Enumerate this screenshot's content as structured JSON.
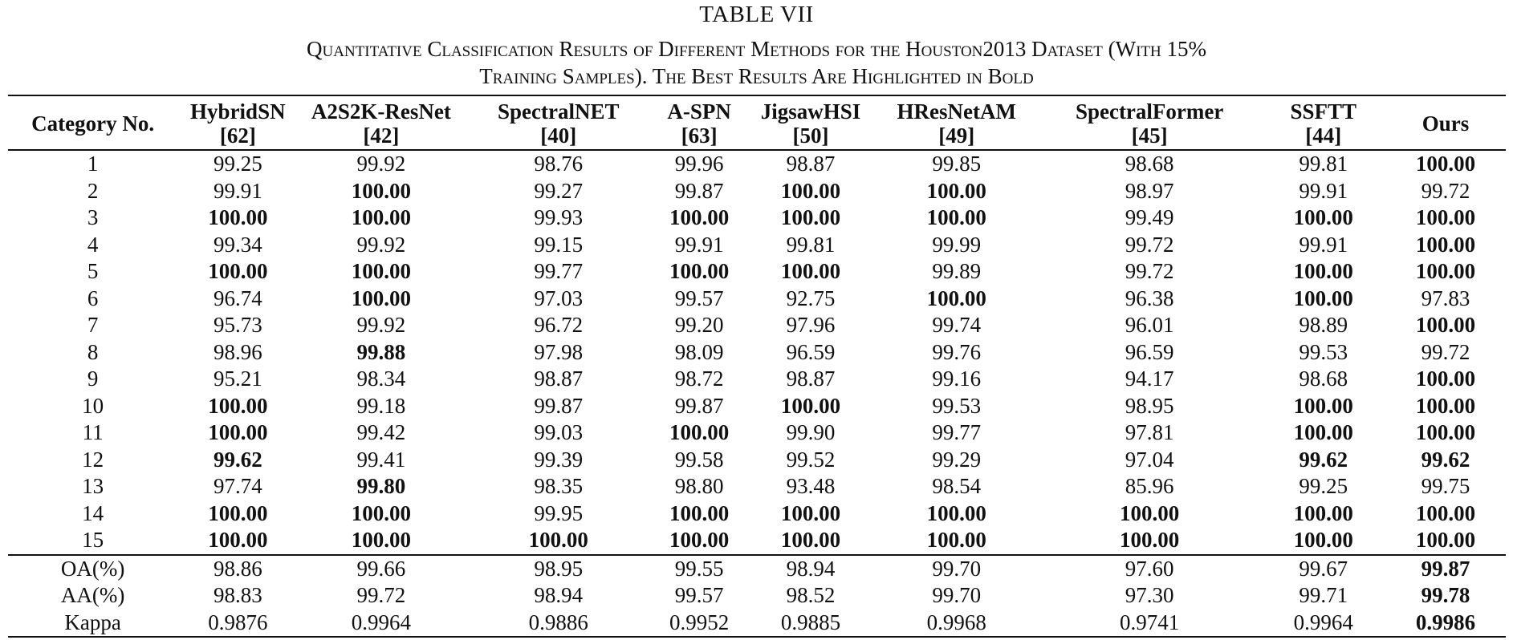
{
  "table_label": "TABLE VII",
  "caption_lines": [
    "Quantitative Classification Results of Different Methods for the Houston2013 Dataset (With 15%",
    "Training Samples). The Best Results Are Highlighted in Bold"
  ],
  "header": {
    "category": "Category No.",
    "methods": [
      {
        "name": "HybridSN",
        "ref": "[62]"
      },
      {
        "name": "A2S2K-ResNet",
        "ref": "[42]"
      },
      {
        "name": "SpectralNET",
        "ref": "[40]"
      },
      {
        "name": "A-SPN",
        "ref": "[63]"
      },
      {
        "name": "JigsawHSI",
        "ref": "[50]"
      },
      {
        "name": "HResNetAM",
        "ref": "[49]"
      },
      {
        "name": "SpectralFormer",
        "ref": "[45]"
      },
      {
        "name": "SSFTT",
        "ref": "[44]"
      },
      {
        "name": "Ours",
        "ref": ""
      }
    ]
  },
  "rows": [
    {
      "label": "1",
      "values": [
        "99.25",
        "99.92",
        "98.76",
        "99.96",
        "98.87",
        "99.85",
        "98.68",
        "99.81",
        "100.00"
      ],
      "bold": [
        8
      ]
    },
    {
      "label": "2",
      "values": [
        "99.91",
        "100.00",
        "99.27",
        "99.87",
        "100.00",
        "100.00",
        "98.97",
        "99.91",
        "99.72"
      ],
      "bold": [
        1,
        4,
        5
      ]
    },
    {
      "label": "3",
      "values": [
        "100.00",
        "100.00",
        "99.93",
        "100.00",
        "100.00",
        "100.00",
        "99.49",
        "100.00",
        "100.00"
      ],
      "bold": [
        0,
        1,
        3,
        4,
        5,
        7,
        8
      ]
    },
    {
      "label": "4",
      "values": [
        "99.34",
        "99.92",
        "99.15",
        "99.91",
        "99.81",
        "99.99",
        "99.72",
        "99.91",
        "100.00"
      ],
      "bold": [
        8
      ]
    },
    {
      "label": "5",
      "values": [
        "100.00",
        "100.00",
        "99.77",
        "100.00",
        "100.00",
        "99.89",
        "99.72",
        "100.00",
        "100.00"
      ],
      "bold": [
        0,
        1,
        3,
        4,
        7,
        8
      ]
    },
    {
      "label": "6",
      "values": [
        "96.74",
        "100.00",
        "97.03",
        "99.57",
        "92.75",
        "100.00",
        "96.38",
        "100.00",
        "97.83"
      ],
      "bold": [
        1,
        5,
        7
      ]
    },
    {
      "label": "7",
      "values": [
        "95.73",
        "99.92",
        "96.72",
        "99.20",
        "97.96",
        "99.74",
        "96.01",
        "98.89",
        "100.00"
      ],
      "bold": [
        8
      ]
    },
    {
      "label": "8",
      "values": [
        "98.96",
        "99.88",
        "97.98",
        "98.09",
        "96.59",
        "99.76",
        "96.59",
        "99.53",
        "99.72"
      ],
      "bold": [
        1
      ]
    },
    {
      "label": "9",
      "values": [
        "95.21",
        "98.34",
        "98.87",
        "98.72",
        "98.87",
        "99.16",
        "94.17",
        "98.68",
        "100.00"
      ],
      "bold": [
        8
      ]
    },
    {
      "label": "10",
      "values": [
        "100.00",
        "99.18",
        "99.87",
        "99.87",
        "100.00",
        "99.53",
        "98.95",
        "100.00",
        "100.00"
      ],
      "bold": [
        0,
        4,
        7,
        8
      ]
    },
    {
      "label": "11",
      "values": [
        "100.00",
        "99.42",
        "99.03",
        "100.00",
        "99.90",
        "99.77",
        "97.81",
        "100.00",
        "100.00"
      ],
      "bold": [
        0,
        3,
        7,
        8
      ]
    },
    {
      "label": "12",
      "values": [
        "99.62",
        "99.41",
        "99.39",
        "99.58",
        "99.52",
        "99.29",
        "97.04",
        "99.62",
        "99.62"
      ],
      "bold": [
        0,
        7,
        8
      ]
    },
    {
      "label": "13",
      "values": [
        "97.74",
        "99.80",
        "98.35",
        "98.80",
        "93.48",
        "98.54",
        "85.96",
        "99.25",
        "99.75"
      ],
      "bold": [
        1
      ]
    },
    {
      "label": "14",
      "values": [
        "100.00",
        "100.00",
        "99.95",
        "100.00",
        "100.00",
        "100.00",
        "100.00",
        "100.00",
        "100.00"
      ],
      "bold": [
        0,
        1,
        3,
        4,
        5,
        6,
        7,
        8
      ]
    },
    {
      "label": "15",
      "values": [
        "100.00",
        "100.00",
        "100.00",
        "100.00",
        "100.00",
        "100.00",
        "100.00",
        "100.00",
        "100.00"
      ],
      "bold": [
        0,
        1,
        2,
        3,
        4,
        5,
        6,
        7,
        8
      ]
    }
  ],
  "summary": [
    {
      "label": "OA(%)",
      "values": [
        "98.86",
        "99.66",
        "98.95",
        "99.55",
        "98.94",
        "99.70",
        "97.60",
        "99.67",
        "99.87"
      ],
      "bold": [
        8
      ]
    },
    {
      "label": "AA(%)",
      "values": [
        "98.83",
        "99.72",
        "98.94",
        "99.57",
        "98.52",
        "99.70",
        "97.30",
        "99.71",
        "99.78"
      ],
      "bold": [
        8
      ]
    },
    {
      "label": "Kappa",
      "values": [
        "0.9876",
        "0.9964",
        "0.9886",
        "0.9952",
        "0.9885",
        "0.9968",
        "0.9741",
        "0.9964",
        "0.9986"
      ],
      "bold": [
        8
      ]
    }
  ]
}
